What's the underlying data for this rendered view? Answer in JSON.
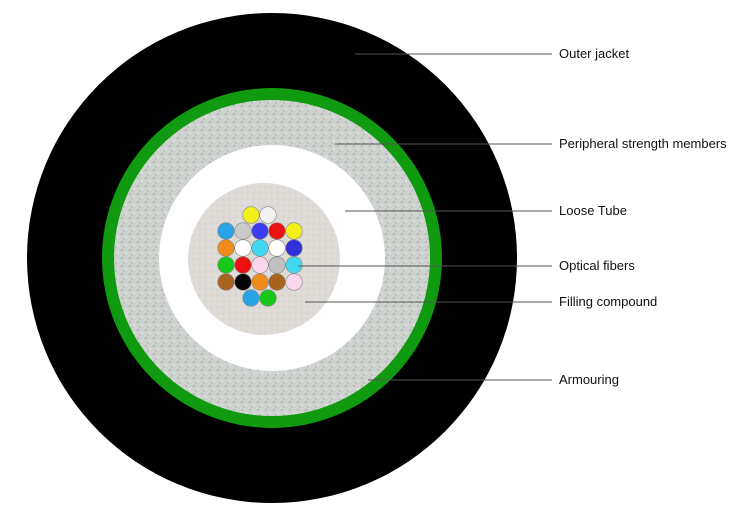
{
  "labels": {
    "outer_jacket": "Outer jacket",
    "strength_members": "Peripheral strength members",
    "loose_tube": "Loose Tube",
    "optical_fibers": "Optical fibers",
    "filling_compound": "Filling compound",
    "armouring": "Armouring"
  },
  "colors": {
    "outer_jacket": "#000000",
    "armouring": "#109a10",
    "strength_members": "#cfd3cf",
    "loose_tube": "#ffffff",
    "filling_compound": "#dedbd7"
  },
  "fiber_colors": [
    "#f3ef1a",
    "#f2f2f2",
    "#2aa3e6",
    "#c9c9c9",
    "#3c3cf0",
    "#ee1111",
    "#f3ef1a",
    "#f08c1a",
    "#ffffff",
    "#41d9f0",
    "#ffffff",
    "#3030d8",
    "#18c818",
    "#ee1111",
    "#fbd6ec",
    "#c0c0c0",
    "#41d9f0",
    "#a8641e",
    "#050505",
    "#f08c1a",
    "#a8641e",
    "#fbd6ec",
    "#2aa3e6",
    "#18c818"
  ]
}
